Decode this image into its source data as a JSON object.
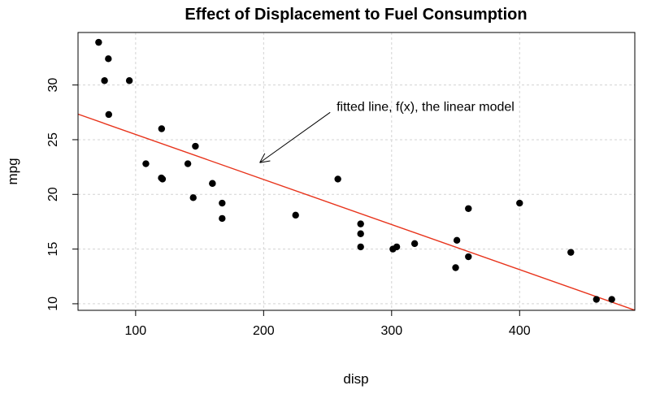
{
  "chart_data": {
    "type": "scatter",
    "title": "Effect of Displacement to Fuel Consumption",
    "xlabel": "disp",
    "ylabel": "mpg",
    "xlim": [
      55,
      490
    ],
    "ylim": [
      9.4,
      34.8
    ],
    "x_ticks": [
      100,
      200,
      300,
      400
    ],
    "y_ticks": [
      10,
      15,
      20,
      25,
      30
    ],
    "grid": true,
    "point_color": "#000000",
    "line_color": "#e8341c",
    "points": [
      {
        "x": 160,
        "y": 21.0
      },
      {
        "x": 160,
        "y": 21.0
      },
      {
        "x": 108,
        "y": 22.8
      },
      {
        "x": 258,
        "y": 21.4
      },
      {
        "x": 360,
        "y": 18.7
      },
      {
        "x": 225,
        "y": 18.1
      },
      {
        "x": 360,
        "y": 14.3
      },
      {
        "x": 146.7,
        "y": 24.4
      },
      {
        "x": 140.8,
        "y": 22.8
      },
      {
        "x": 167.6,
        "y": 19.2
      },
      {
        "x": 167.6,
        "y": 17.8
      },
      {
        "x": 275.8,
        "y": 16.4
      },
      {
        "x": 275.8,
        "y": 17.3
      },
      {
        "x": 275.8,
        "y": 15.2
      },
      {
        "x": 472,
        "y": 10.4
      },
      {
        "x": 460,
        "y": 10.4
      },
      {
        "x": 78.7,
        "y": 32.4
      },
      {
        "x": 75.7,
        "y": 30.4
      },
      {
        "x": 71.1,
        "y": 33.9
      },
      {
        "x": 120.1,
        "y": 21.5
      },
      {
        "x": 318,
        "y": 15.5
      },
      {
        "x": 304,
        "y": 15.2
      },
      {
        "x": 350,
        "y": 13.3
      },
      {
        "x": 400,
        "y": 19.2
      },
      {
        "x": 79,
        "y": 27.3
      },
      {
        "x": 120.3,
        "y": 26.0
      },
      {
        "x": 95.1,
        "y": 30.4
      },
      {
        "x": 351,
        "y": 15.8
      },
      {
        "x": 145,
        "y": 19.7
      },
      {
        "x": 301,
        "y": 15.0
      },
      {
        "x": 121,
        "y": 21.4
      },
      {
        "x": 440,
        "y": 14.7
      }
    ],
    "fit_line": {
      "intercept": 29.6,
      "slope": -0.0412
    },
    "annotation": {
      "text": "fitted line, f(x), the linear model",
      "text_at": {
        "x": 257,
        "y": 28.0
      },
      "arrow_from": {
        "x": 252,
        "y": 27.5
      },
      "arrow_to": {
        "x": 197,
        "y": 22.9
      }
    }
  }
}
